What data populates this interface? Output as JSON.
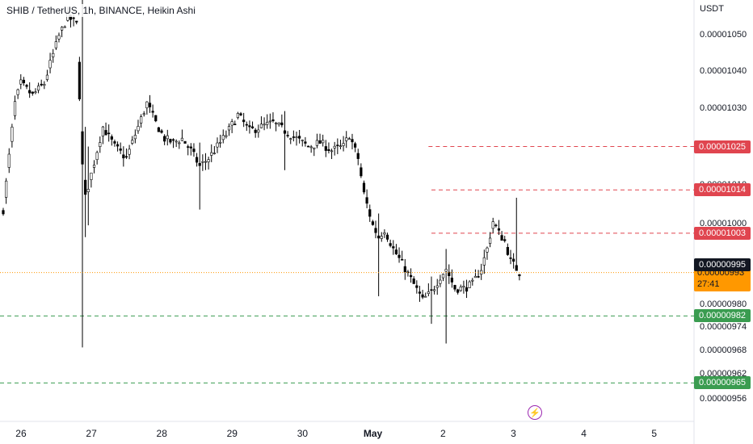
{
  "header": {
    "title": "SHIB / TetherUS, 1h, BINANCE, Heikin Ashi"
  },
  "price_unit": "USDT",
  "colors": {
    "candle_up": "#ffffff",
    "candle_down": "#000000",
    "border": "#000000",
    "red_line": "#e0454f",
    "green_line": "#3a9c50",
    "last_price": "#ff9800"
  },
  "chart_data": {
    "type": "candlestick",
    "style": "Heikin Ashi",
    "symbol": "SHIB / TetherUS",
    "interval": "1h",
    "exchange": "BINANCE",
    "y_ticks": [
      "0.00001050",
      "0.00001040",
      "0.00001030",
      "0.00001020",
      "0.00001010",
      "0.00001000",
      "0.00000980",
      "0.00000974",
      "0.00000968",
      "0.00000962",
      "0.00000956"
    ],
    "x_ticks": [
      {
        "label": "26",
        "idx": 6
      },
      {
        "label": "27",
        "idx": 30
      },
      {
        "label": "28",
        "idx": 54
      },
      {
        "label": "29",
        "idx": 78
      },
      {
        "label": "30",
        "idx": 102
      },
      {
        "label": "May",
        "idx": 126,
        "bold": true
      },
      {
        "label": "2",
        "idx": 150
      },
      {
        "label": "3",
        "idx": 174
      },
      {
        "label": "4",
        "idx": 198
      },
      {
        "label": "5",
        "idx": 222
      }
    ],
    "last_price": "0.00000993",
    "countdown": "27:41",
    "crosshair_price": "0.00000995",
    "horizontal_lines": [
      {
        "price": 1.025e-05,
        "label": "0.00001025",
        "color": "red",
        "from_idx": 145
      },
      {
        "price": 1.014e-05,
        "label": "0.00001014",
        "color": "red",
        "from_idx": 146
      },
      {
        "price": 1.003e-05,
        "label": "0.00001003",
        "color": "red",
        "from_idx": 146
      },
      {
        "price": 9.82e-06,
        "label": "0.00000982",
        "color": "green",
        "from_idx": 0
      },
      {
        "price": 9.65e-06,
        "label": "0.00000965",
        "color": "green",
        "from_idx": 0
      }
    ],
    "keypoints": [
      [
        0,
        1009
      ],
      [
        4,
        1036
      ],
      [
        6,
        1041
      ],
      [
        10,
        1038
      ],
      [
        14,
        1041
      ],
      [
        16,
        1046
      ],
      [
        19,
        1053
      ],
      [
        22,
        1058
      ],
      [
        25,
        1056
      ],
      [
        27,
        1020
      ],
      [
        28,
        1012
      ],
      [
        30,
        1018
      ],
      [
        34,
        1030
      ],
      [
        38,
        1025
      ],
      [
        42,
        1022
      ],
      [
        46,
        1030
      ],
      [
        49,
        1036
      ],
      [
        52,
        1031
      ],
      [
        55,
        1027
      ],
      [
        58,
        1026
      ],
      [
        61,
        1027
      ],
      [
        64,
        1024
      ],
      [
        67,
        1020
      ],
      [
        70,
        1022
      ],
      [
        73,
        1025
      ],
      [
        76,
        1028
      ],
      [
        80,
        1033
      ],
      [
        84,
        1029
      ],
      [
        88,
        1030
      ],
      [
        92,
        1031
      ],
      [
        96,
        1029
      ],
      [
        100,
        1027
      ],
      [
        104,
        1025
      ],
      [
        108,
        1026
      ],
      [
        112,
        1024
      ],
      [
        116,
        1025
      ],
      [
        118,
        1028
      ],
      [
        121,
        1022
      ],
      [
        123,
        1013
      ],
      [
        126,
        1005
      ],
      [
        128,
        1002
      ],
      [
        130,
        1004
      ],
      [
        133,
        999
      ],
      [
        137,
        994
      ],
      [
        140,
        990
      ],
      [
        143,
        986
      ],
      [
        146,
        988
      ],
      [
        149,
        992
      ],
      [
        151,
        994
      ],
      [
        154,
        989
      ],
      [
        157,
        989
      ],
      [
        160,
        990
      ],
      [
        163,
        994
      ],
      [
        165,
        999
      ],
      [
        167,
        1006
      ],
      [
        169,
        1003
      ],
      [
        171,
        1001
      ],
      [
        173,
        996
      ],
      [
        176,
        993
      ]
    ],
    "wick_events": [
      {
        "idx": 27,
        "high": 1082,
        "low": 974
      },
      {
        "idx": 28,
        "high": 1030,
        "low": 1002
      },
      {
        "idx": 29,
        "high": 1025,
        "low": 1005
      },
      {
        "idx": 67,
        "high": 1026,
        "low": 1009
      },
      {
        "idx": 96,
        "high": 1034,
        "low": 1019
      },
      {
        "idx": 128,
        "high": 1008,
        "low": 987
      },
      {
        "idx": 146,
        "high": 992,
        "low": 980
      },
      {
        "idx": 151,
        "high": 999,
        "low": 975
      },
      {
        "idx": 175,
        "high": 1012,
        "low": 994
      }
    ]
  }
}
